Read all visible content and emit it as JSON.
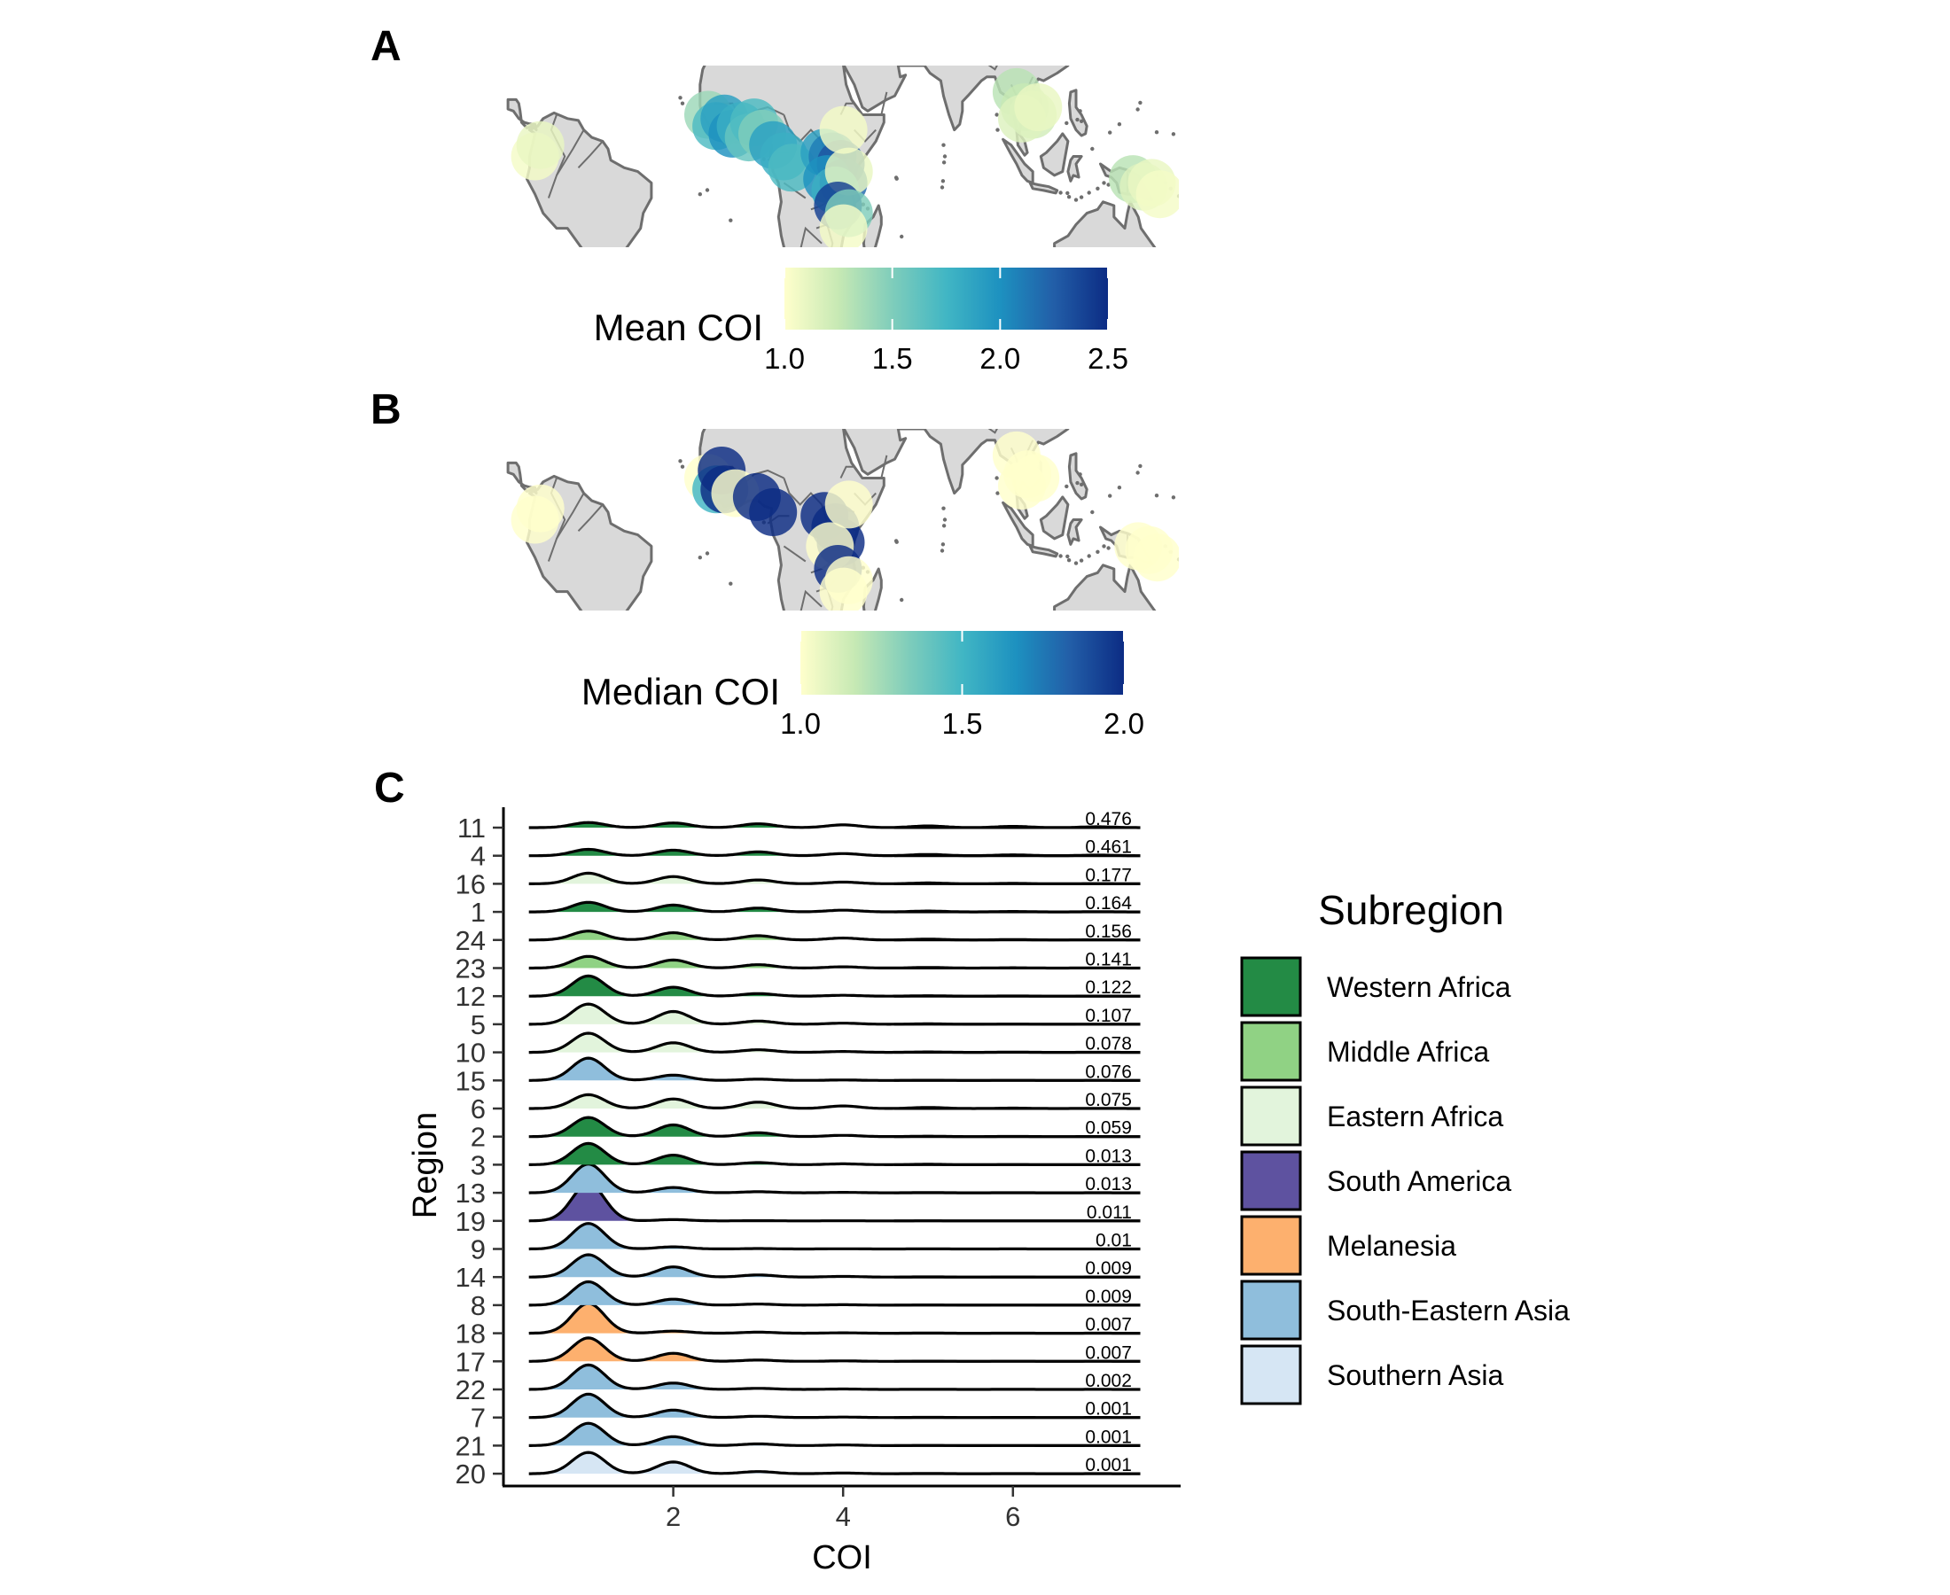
{
  "panels": {
    "a": {
      "label": "A",
      "colorbar": {
        "title": "Mean COI",
        "min": 1.0,
        "max": 2.5,
        "ticks": [
          "1.0",
          "1.5",
          "2.0",
          "2.5"
        ]
      }
    },
    "b": {
      "label": "B",
      "colorbar": {
        "title": "Median COI",
        "min": 1.0,
        "max": 2.0,
        "ticks": [
          "1.0",
          "1.5",
          "2.0"
        ]
      }
    },
    "c": {
      "label": "C"
    }
  },
  "colors": {
    "ocean": "#ffffff",
    "land": "#d9d9d9",
    "coast": "#6e6e6e",
    "colorscale": [
      "#ffffcc",
      "#c7e9b4",
      "#7fcdbb",
      "#41b6c4",
      "#1d91c0",
      "#225ea8",
      "#0c2c84"
    ]
  },
  "map_points": {
    "a": [
      {
        "lon": -78,
        "lat": 1,
        "value": 1.05
      },
      {
        "lon": -76,
        "lat": 4,
        "value": 1.1
      },
      {
        "lon": -14,
        "lat": 12,
        "value": 1.4
      },
      {
        "lon": -11,
        "lat": 9,
        "value": 1.7
      },
      {
        "lon": -8,
        "lat": 11,
        "value": 1.9
      },
      {
        "lon": -5,
        "lat": 7,
        "value": 2.0
      },
      {
        "lon": -2,
        "lat": 9,
        "value": 1.8
      },
      {
        "lon": 1,
        "lat": 6,
        "value": 1.6
      },
      {
        "lon": 3,
        "lat": 10,
        "value": 1.7
      },
      {
        "lon": 6,
        "lat": 7,
        "value": 1.5
      },
      {
        "lon": 10,
        "lat": 4,
        "value": 1.9
      },
      {
        "lon": 14,
        "lat": 1,
        "value": 1.8
      },
      {
        "lon": 17,
        "lat": -2,
        "value": 1.7
      },
      {
        "lon": 29,
        "lat": 2,
        "value": 1.9
      },
      {
        "lon": 32,
        "lat": 1,
        "value": 2.1
      },
      {
        "lon": 35,
        "lat": -1,
        "value": 2.3
      },
      {
        "lon": 30,
        "lat": -5,
        "value": 2.0
      },
      {
        "lon": 36,
        "lat": -6,
        "value": 2.2
      },
      {
        "lon": 33,
        "lat": -8,
        "value": 1.8
      },
      {
        "lon": 38,
        "lat": -3,
        "value": 1.1
      },
      {
        "lon": 36,
        "lat": 8,
        "value": 1.05
      },
      {
        "lon": 34,
        "lat": -12,
        "value": 2.4
      },
      {
        "lon": 38,
        "lat": -14,
        "value": 1.5
      },
      {
        "lon": 36,
        "lat": -18,
        "value": 1.05
      },
      {
        "lon": 100,
        "lat": 18,
        "value": 1.3
      },
      {
        "lon": 103,
        "lat": 14,
        "value": 1.25
      },
      {
        "lon": 106,
        "lat": 12,
        "value": 1.2
      },
      {
        "lon": 102,
        "lat": 11,
        "value": 1.15
      },
      {
        "lon": 108,
        "lat": 14,
        "value": 1.1
      },
      {
        "lon": 143,
        "lat": -5,
        "value": 1.3
      },
      {
        "lon": 147,
        "lat": -7,
        "value": 1.15
      },
      {
        "lon": 150,
        "lat": -6,
        "value": 1.1
      },
      {
        "lon": 153,
        "lat": -9,
        "value": 1.05
      }
    ],
    "b": [
      {
        "lon": -78,
        "lat": 1,
        "value": 1.0
      },
      {
        "lon": -76,
        "lat": 4,
        "value": 1.0
      },
      {
        "lon": -14,
        "lat": 12,
        "value": 1.0
      },
      {
        "lon": -11,
        "lat": 9,
        "value": 1.5
      },
      {
        "lon": -9,
        "lat": 14,
        "value": 2.0
      },
      {
        "lon": -8,
        "lat": 9,
        "value": 2.0
      },
      {
        "lon": -4,
        "lat": 8,
        "value": 1.0
      },
      {
        "lon": 4,
        "lat": 7,
        "value": 2.0
      },
      {
        "lon": 10,
        "lat": 3,
        "value": 2.0
      },
      {
        "lon": 29,
        "lat": 2,
        "value": 2.0
      },
      {
        "lon": 33,
        "lat": -1,
        "value": 2.0
      },
      {
        "lon": 35,
        "lat": -5,
        "value": 2.0
      },
      {
        "lon": 31,
        "lat": -6,
        "value": 1.0
      },
      {
        "lon": 38,
        "lat": 5,
        "value": 1.0
      },
      {
        "lon": 34,
        "lat": -12,
        "value": 2.0
      },
      {
        "lon": 38,
        "lat": -15,
        "value": 1.0
      },
      {
        "lon": 36,
        "lat": -18,
        "value": 1.0
      },
      {
        "lon": 100,
        "lat": 18,
        "value": 1.0
      },
      {
        "lon": 104,
        "lat": 13,
        "value": 1.0
      },
      {
        "lon": 107,
        "lat": 12,
        "value": 1.0
      },
      {
        "lon": 102,
        "lat": 10,
        "value": 1.0
      },
      {
        "lon": 145,
        "lat": -6,
        "value": 1.0
      },
      {
        "lon": 149,
        "lat": -7,
        "value": 1.0
      },
      {
        "lon": 152,
        "lat": -9,
        "value": 1.0
      }
    ]
  },
  "chart_data": {
    "type": "ridgeline",
    "xlabel": "COI",
    "ylabel": "Region",
    "xticks": [
      2,
      4,
      6
    ],
    "xlim": [
      0.3,
      8.0
    ],
    "legend": {
      "title": "Subregion",
      "placement": "right",
      "items": [
        {
          "name": "Western Africa",
          "color": "#238b45"
        },
        {
          "name": "Middle Africa",
          "color": "#90d284"
        },
        {
          "name": "Eastern Africa",
          "color": "#e2f4dc"
        },
        {
          "name": "South America",
          "color": "#5e52a0"
        },
        {
          "name": "Melanesia",
          "color": "#fdb06e"
        },
        {
          "name": "South-Eastern Asia",
          "color": "#8fbedc"
        },
        {
          "name": "Southern Asia",
          "color": "#d6e6f4"
        }
      ]
    },
    "series": [
      {
        "region": "11",
        "value": "0.476",
        "subregion": "Western Africa",
        "peaks": [
          0.24,
          0.22,
          0.18,
          0.13,
          0.08,
          0.06,
          0.04
        ]
      },
      {
        "region": "4",
        "value": "0.461",
        "subregion": "Western Africa",
        "peaks": [
          0.3,
          0.26,
          0.18,
          0.1,
          0.06,
          0.04,
          0.03
        ]
      },
      {
        "region": "16",
        "value": "0.177",
        "subregion": "Eastern Africa",
        "peaks": [
          0.5,
          0.34,
          0.18,
          0.08,
          0.04,
          0.02,
          0.01
        ]
      },
      {
        "region": "1",
        "value": "0.164",
        "subregion": "Western Africa",
        "peaks": [
          0.45,
          0.32,
          0.18,
          0.08,
          0.04,
          0.02,
          0.01
        ]
      },
      {
        "region": "24",
        "value": "0.156",
        "subregion": "Middle Africa",
        "peaks": [
          0.42,
          0.34,
          0.2,
          0.09,
          0.04,
          0.02,
          0.01
        ]
      },
      {
        "region": "23",
        "value": "0.141",
        "subregion": "Middle Africa",
        "peaks": [
          0.55,
          0.38,
          0.16,
          0.06,
          0.03,
          0.015,
          0.01
        ]
      },
      {
        "region": "12",
        "value": "0.122",
        "subregion": "Western Africa",
        "peaks": [
          0.95,
          0.42,
          0.12,
          0.04,
          0.02,
          0.01,
          0.005
        ]
      },
      {
        "region": "5",
        "value": "0.107",
        "subregion": "Eastern Africa",
        "peaks": [
          0.95,
          0.6,
          0.15,
          0.05,
          0.02,
          0.01,
          0.005
        ]
      },
      {
        "region": "10",
        "value": "0.078",
        "subregion": "Eastern Africa",
        "peaks": [
          0.9,
          0.45,
          0.12,
          0.04,
          0.02,
          0.01,
          0.005
        ]
      },
      {
        "region": "15",
        "value": "0.076",
        "subregion": "South-Eastern Asia",
        "peaks": [
          1.05,
          0.25,
          0.06,
          0.02,
          0.01,
          0.005,
          0.003
        ]
      },
      {
        "region": "6",
        "value": "0.075",
        "subregion": "Eastern Africa",
        "peaks": [
          0.65,
          0.45,
          0.3,
          0.12,
          0.05,
          0.02,
          0.01
        ]
      },
      {
        "region": "2",
        "value": "0.059",
        "subregion": "Western Africa",
        "peaks": [
          0.9,
          0.55,
          0.18,
          0.06,
          0.02,
          0.01,
          0.005
        ]
      },
      {
        "region": "3",
        "value": "0.013",
        "subregion": "Western Africa",
        "peaks": [
          1.0,
          0.45,
          0.1,
          0.04,
          0.02,
          0.01,
          0.005
        ]
      },
      {
        "region": "13",
        "value": "0.013",
        "subregion": "South-Eastern Asia",
        "peaks": [
          1.35,
          0.25,
          0.05,
          0.02,
          0.01,
          0.005,
          0.003
        ]
      },
      {
        "region": "19",
        "value": "0.011",
        "subregion": "South America",
        "peaks": [
          1.75,
          0.06,
          0.01,
          0.005,
          0.003,
          0.002,
          0.001
        ]
      },
      {
        "region": "9",
        "value": "0.01",
        "subregion": "South-Eastern Asia",
        "peaks": [
          1.2,
          0.1,
          0.02,
          0.01,
          0.005,
          0.003,
          0.002
        ]
      },
      {
        "region": "14",
        "value": "0.009",
        "subregion": "South-Eastern Asia",
        "peaks": [
          1.05,
          0.48,
          0.1,
          0.03,
          0.01,
          0.005,
          0.003
        ]
      },
      {
        "region": "8",
        "value": "0.009",
        "subregion": "South-Eastern Asia",
        "peaks": [
          1.1,
          0.28,
          0.05,
          0.02,
          0.01,
          0.005,
          0.003
        ]
      },
      {
        "region": "18",
        "value": "0.007",
        "subregion": "Melanesia",
        "peaks": [
          1.4,
          0.1,
          0.05,
          0.02,
          0.01,
          0.005,
          0.003
        ]
      },
      {
        "region": "17",
        "value": "0.007",
        "subregion": "Melanesia",
        "peaks": [
          1.1,
          0.38,
          0.06,
          0.02,
          0.01,
          0.005,
          0.003
        ]
      },
      {
        "region": "22",
        "value": "0.002",
        "subregion": "South-Eastern Asia",
        "peaks": [
          1.15,
          0.3,
          0.05,
          0.02,
          0.01,
          0.005,
          0.003
        ]
      },
      {
        "region": "7",
        "value": "0.001",
        "subregion": "South-Eastern Asia",
        "peaks": [
          1.1,
          0.35,
          0.06,
          0.02,
          0.01,
          0.005,
          0.003
        ]
      },
      {
        "region": "21",
        "value": "0.001",
        "subregion": "South-Eastern Asia",
        "peaks": [
          1.05,
          0.42,
          0.08,
          0.03,
          0.01,
          0.005,
          0.003
        ]
      },
      {
        "region": "20",
        "value": "0.001",
        "subregion": "Southern Asia",
        "peaks": [
          1.0,
          0.55,
          0.1,
          0.03,
          0.01,
          0.005,
          0.003
        ]
      }
    ]
  }
}
